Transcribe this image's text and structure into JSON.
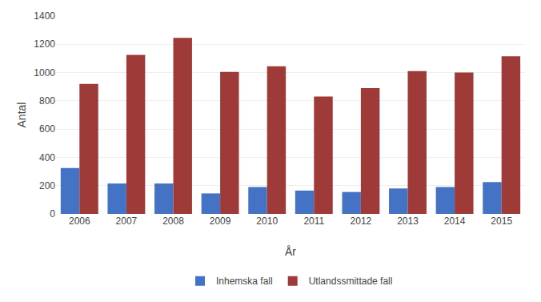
{
  "chart_data": {
    "type": "bar",
    "categories": [
      "2006",
      "2007",
      "2008",
      "2009",
      "2010",
      "2011",
      "2012",
      "2013",
      "2014",
      "2015"
    ],
    "series": [
      {
        "name": "Inhemska fall",
        "color": "#4472C4",
        "values": [
          325,
          215,
          215,
          145,
          190,
          165,
          155,
          180,
          190,
          225
        ]
      },
      {
        "name": "Utlandssmittade fall",
        "color": "#9E3A38",
        "values": [
          920,
          1125,
          1245,
          1005,
          1045,
          830,
          890,
          1010,
          1000,
          1115
        ]
      }
    ],
    "xlabel": "År",
    "ylabel": "Antal",
    "ylim": [
      0,
      1400
    ],
    "yticks": [
      0,
      200,
      400,
      600,
      800,
      1000,
      1200,
      1400
    ],
    "grid": true,
    "legend": "bottom"
  }
}
